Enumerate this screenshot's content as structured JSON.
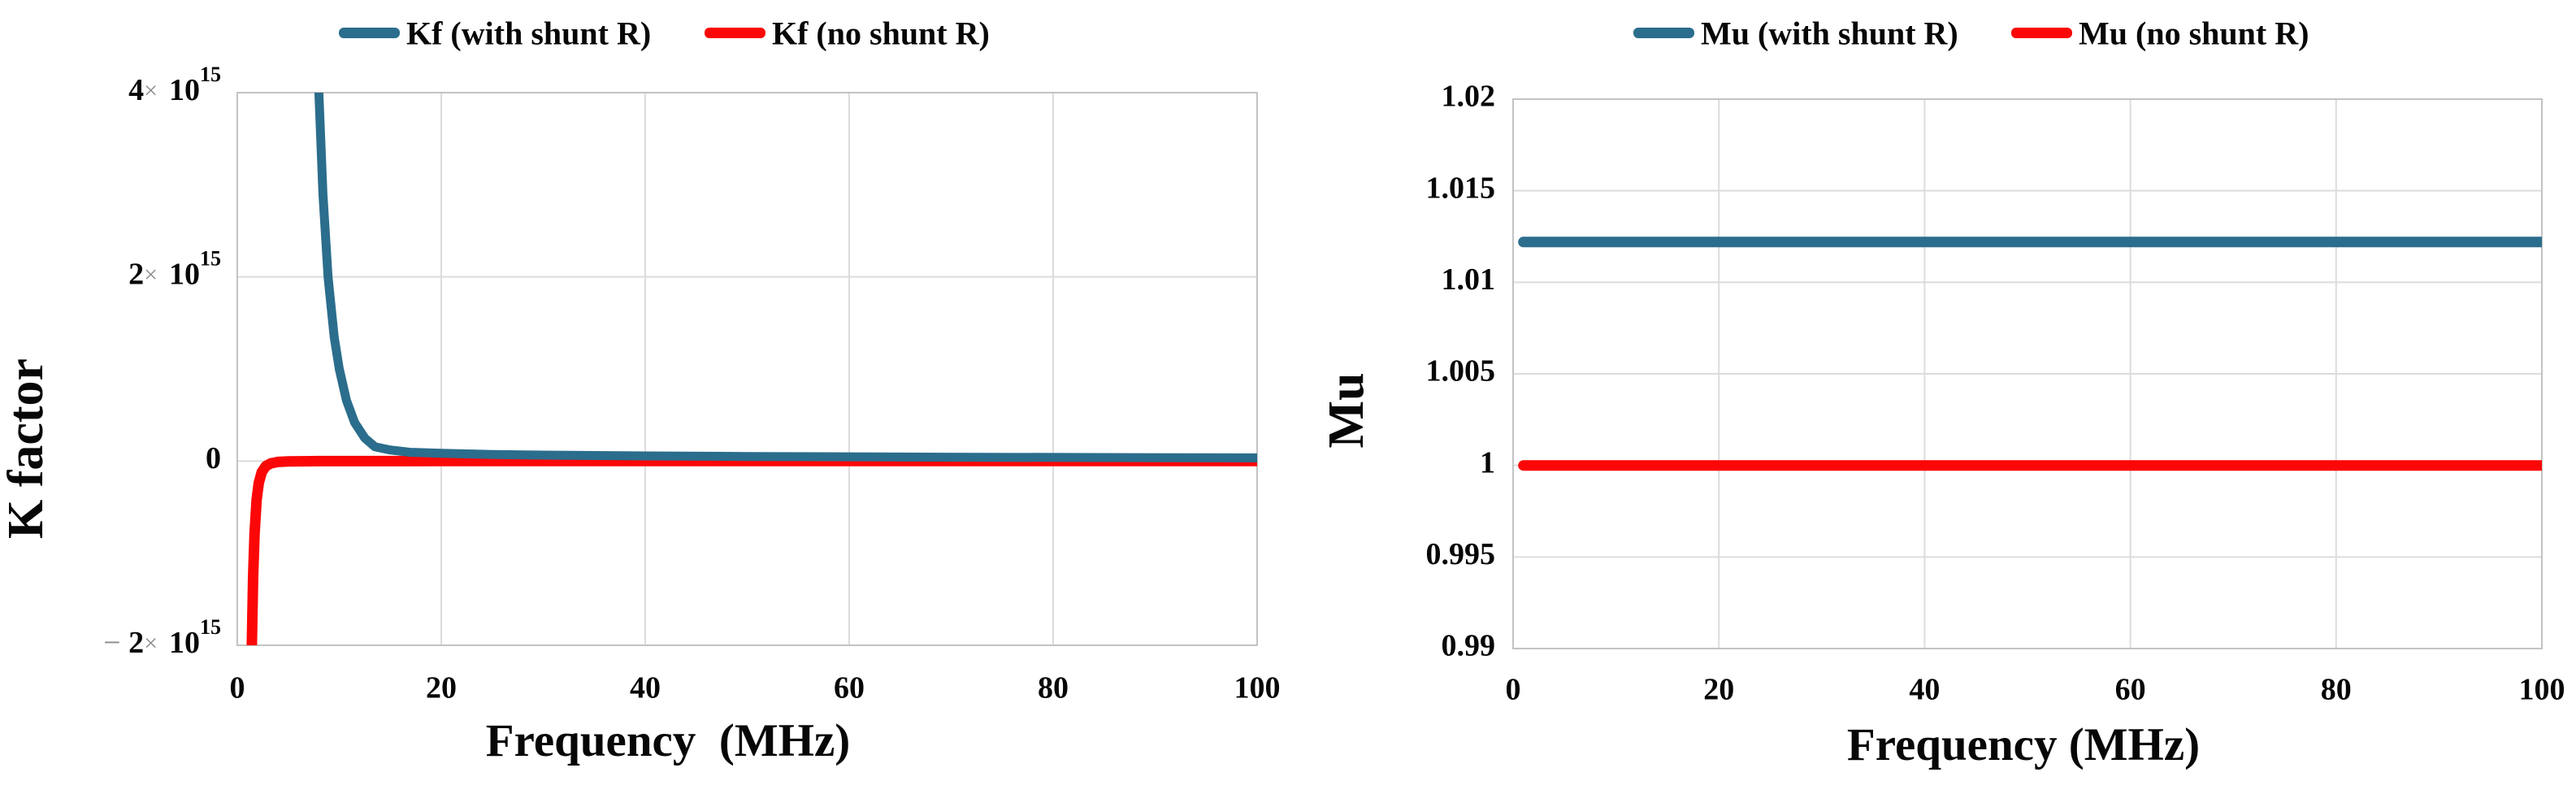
{
  "page": {
    "background": "#ffffff",
    "grid_color": "#dcdcdc",
    "border_color": "#c3c3c3",
    "text_color": "#070707"
  },
  "chart_data": [
    {
      "type": "line",
      "id": "k-factor",
      "title": "",
      "xlabel": "Frequency  (MHz)",
      "ylabel": "K factor",
      "xlim": [
        0,
        100
      ],
      "xticks": [
        0,
        20,
        40,
        60,
        80,
        100
      ],
      "ylim": [
        -2000000000000000.0,
        4000000000000000.0
      ],
      "yticks": [
        {
          "v": 4000000000000000.0,
          "neg": false,
          "coef": "4",
          "pow": "15"
        },
        {
          "v": 2000000000000000.0,
          "neg": false,
          "coef": "2",
          "pow": "15"
        },
        {
          "v": 0,
          "plain": "0"
        },
        {
          "v": -2000000000000000.0,
          "neg": true,
          "coef": "2",
          "pow": "15"
        }
      ],
      "grid": true,
      "legend_position": "top",
      "series": [
        {
          "name": "Kf (with shunt R)",
          "color": "#2b6d8c",
          "width": 11,
          "points": [
            [
              7.9,
              4600000000000000.0
            ],
            [
              8,
              4000000000000000.0
            ],
            [
              8.4,
              2900000000000000.0
            ],
            [
              8.9,
              2000000000000000.0
            ],
            [
              9.5,
              1350000000000000.0
            ],
            [
              10,
              1000000000000000.0
            ],
            [
              10.7,
              660000000000000.0
            ],
            [
              11.5,
              420000000000000.0
            ],
            [
              12.5,
              250000000000000.0
            ],
            [
              13.5,
              155000000000000.0
            ],
            [
              15,
              120000000000000.0
            ],
            [
              17,
              95000000000000.0
            ],
            [
              20,
              85000000000000.0
            ],
            [
              25,
              72000000000000.0
            ],
            [
              30,
              65000000000000.0
            ],
            [
              40,
              56000000000000.0
            ],
            [
              50,
              50000000000000.0
            ],
            [
              70,
              42000000000000.0
            ],
            [
              100,
              35000000000000.0
            ]
          ]
        },
        {
          "name": "Kf (no shunt R)",
          "color": "#fb0707",
          "width": 13,
          "points": [
            [
              1.4,
              -2500000000000000.0
            ],
            [
              1.43,
              -2000000000000000.0
            ],
            [
              1.55,
              -1250000000000000.0
            ],
            [
              1.7,
              -780000000000000.0
            ],
            [
              1.9,
              -420000000000000.0
            ],
            [
              2.1,
              -240000000000000.0
            ],
            [
              2.4,
              -120000000000000.0
            ],
            [
              2.8,
              -55000000000000.0
            ],
            [
              3.3,
              -24000000000000.0
            ],
            [
              4,
              -9000000000000.0
            ],
            [
              5,
              -3500000000000.0
            ],
            [
              8,
              -800000000000.0
            ],
            [
              12,
              -200000000000.0
            ],
            [
              20,
              0
            ],
            [
              100,
              0
            ]
          ]
        }
      ]
    },
    {
      "type": "line",
      "id": "mu",
      "title": "",
      "xlabel": "Frequency (MHz)",
      "ylabel": "Mu",
      "xlim": [
        0,
        100
      ],
      "xticks": [
        0,
        20,
        40,
        60,
        80,
        100
      ],
      "ylim": [
        0.99,
        1.02
      ],
      "yticks": [
        {
          "v": 1.02,
          "plain": "1.02"
        },
        {
          "v": 1.015,
          "plain": "1.015"
        },
        {
          "v": 1.01,
          "plain": "1.01"
        },
        {
          "v": 1.005,
          "plain": "1.005"
        },
        {
          "v": 1.0,
          "plain": "1"
        },
        {
          "v": 0.995,
          "plain": "0.995"
        },
        {
          "v": 0.99,
          "plain": "0.99"
        }
      ],
      "grid": true,
      "legend_position": "top",
      "series": [
        {
          "name": "Mu (with shunt R)",
          "color": "#2b6d8c",
          "width": 13,
          "points": [
            [
              1,
              1.0122
            ],
            [
              100,
              1.0122
            ]
          ]
        },
        {
          "name": "Mu (no shunt R)",
          "color": "#fb0707",
          "width": 13,
          "points": [
            [
              1,
              1.0
            ],
            [
              100,
              1.0
            ]
          ]
        }
      ]
    }
  ]
}
